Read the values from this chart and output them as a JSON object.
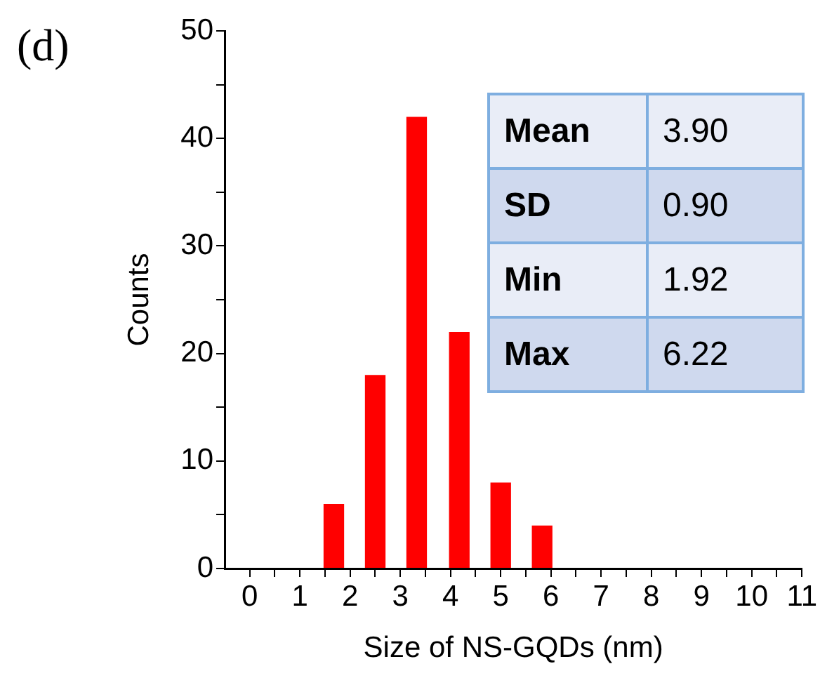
{
  "chart_data": {
    "type": "histogram",
    "xlabel": "Size of NS-GQDs (nm)",
    "ylabel": "Counts",
    "bins": [
      1.25,
      2.1,
      2.9,
      3.75,
      4.6,
      5.4,
      6.25
    ],
    "values": [
      6,
      18,
      42,
      22,
      8,
      4
    ],
    "color": "#ff0000",
    "xlim": [
      -0.5,
      11
    ],
    "xticks": [
      0,
      {
        "value": 0.5,
        "label": null
      },
      1,
      {
        "value": 1.5,
        "label": null
      },
      2,
      {
        "value": 2.5,
        "label": null
      },
      3,
      {
        "value": 3.5,
        "label": null
      },
      4,
      {
        "value": 4.5,
        "label": null
      },
      5,
      {
        "value": 5.5,
        "label": null
      },
      6,
      {
        "value": 6.5,
        "label": null
      },
      7,
      {
        "value": 7.5,
        "label": null
      },
      8,
      {
        "value": 8.5,
        "label": null
      },
      9,
      {
        "value": 9.5,
        "label": null
      },
      10,
      {
        "value": 10.5,
        "label": null
      },
      11
    ],
    "ylim": [
      0,
      50
    ],
    "yticks": [
      0,
      {
        "value": 5,
        "label": null
      },
      10,
      {
        "value": 15,
        "label": null
      },
      20,
      {
        "value": 25,
        "label": null
      },
      30,
      {
        "value": 35,
        "label": null
      },
      40,
      {
        "value": 45,
        "label": null
      },
      50
    ],
    "grid": false,
    "legend": false,
    "annotations": [
      "(d)",
      "Mean",
      "3.90",
      "SD",
      "0.90",
      "Min",
      "1.92",
      "Max",
      "6.22"
    ]
  }
}
